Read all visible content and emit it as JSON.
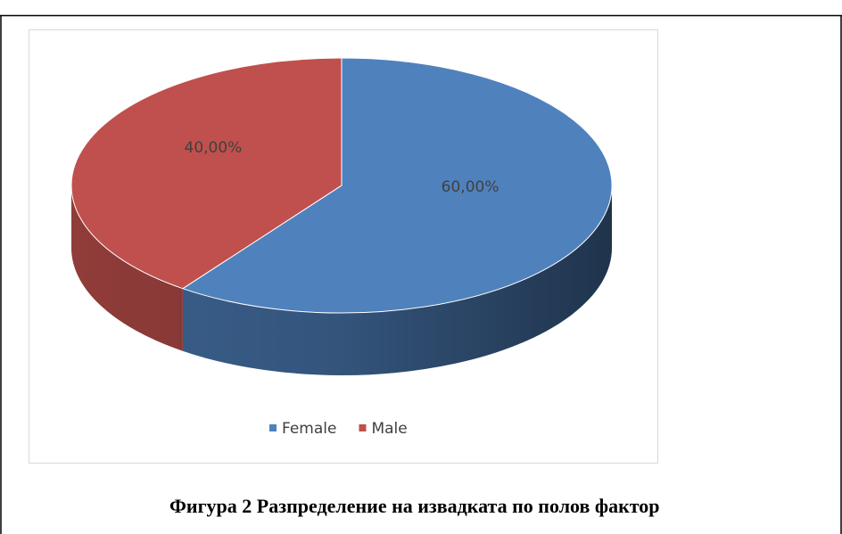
{
  "chart_data": {
    "type": "pie",
    "categories": [
      "Female",
      "Male"
    ],
    "values": [
      60,
      40
    ],
    "value_labels": [
      "60,00%",
      "40,00%"
    ],
    "colors": [
      "#4f81bd",
      "#c0504d"
    ],
    "legend": "bottom",
    "caption": "Фигура 2 Разпределение на извадката по полов фактор"
  }
}
